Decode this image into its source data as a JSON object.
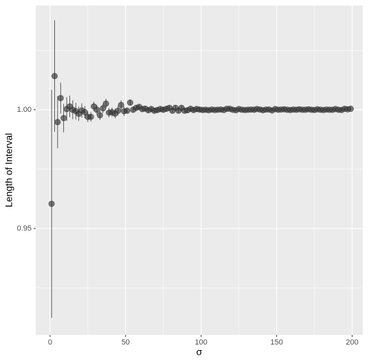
{
  "chart_data": {
    "type": "scatter",
    "xlabel": "σ",
    "ylabel": "Length of Interval",
    "x": [
      1,
      3,
      5,
      7,
      9,
      11,
      13,
      15,
      17,
      19,
      21,
      23,
      25,
      27,
      29,
      31,
      33,
      35,
      37,
      39,
      41,
      43,
      45,
      47,
      49,
      51,
      53,
      55,
      57,
      59,
      61,
      63,
      65,
      67,
      69,
      71,
      73,
      75,
      77,
      79,
      81,
      83,
      85,
      87,
      89,
      91,
      93,
      95,
      97,
      99,
      101,
      103,
      105,
      107,
      109,
      111,
      113,
      115,
      117,
      119,
      121,
      123,
      125,
      127,
      129,
      131,
      133,
      135,
      137,
      139,
      141,
      143,
      145,
      147,
      149,
      151,
      153,
      155,
      157,
      159,
      161,
      163,
      165,
      167,
      169,
      171,
      173,
      175,
      177,
      179,
      181,
      183,
      185,
      187,
      189,
      191,
      193,
      195,
      197,
      199
    ],
    "series": [
      {
        "color": "#333333",
        "values": [
          0.9604,
          1.0142,
          0.9948,
          1.0049,
          0.9965,
          1.0003,
          1.0014,
          1.0,
          0.9994,
          0.9983,
          0.9997,
          0.999,
          0.997,
          0.997,
          1.0014,
          1.0,
          0.9977,
          1.0006,
          1.0026,
          0.9988,
          0.999,
          0.9984,
          0.9996,
          1.002,
          0.9994,
          0.9996,
          1.003,
          1.0,
          1.0008,
          1.0012,
          1.0003,
          1.0005,
          0.9998,
          1.0003,
          0.9996,
          0.9999,
          1.0003,
          1.0,
          1.0004,
          1.0008,
          0.9996,
          1.0008,
          0.9996,
          1.0008,
          0.9996,
          0.9998,
          1.0004,
          0.9999,
          1.0003,
          1.0001,
          0.9999,
          1.0,
          0.9998,
          1.0001,
          0.9999,
          1.0,
          1.0001,
          0.9999,
          1.0004,
          1.0004,
          1.0,
          0.9998,
          1.0003,
          1.0,
          0.9999,
          1.0,
          1.0001,
          1.0,
          1.0003,
          1.0001,
          0.9998,
          1.0001,
          1.0001,
          0.9997,
          1.0003,
          1.0,
          1.0001,
          1.0002,
          1.0,
          0.9999,
          1.0001,
          1.0,
          1.0002,
          1.0,
          1.0,
          1.0002,
          1.0,
          0.9999,
          1.0002,
          1.0,
          0.9999,
          1.0001,
          1.0,
          1.0,
          1.0003,
          1.0,
          0.9999,
          1.0004,
          1.0002,
          1.0004
        ],
        "errors": [
          0.048,
          0.0235,
          0.011,
          0.0065,
          0.006,
          0.005,
          0.0045,
          0.004,
          0.0035,
          0.003,
          0.003,
          0.0025,
          0.0022,
          0.002,
          0.002,
          0.002,
          0.002,
          0.002,
          0.002,
          0.002,
          0.002,
          0.002,
          0.002,
          0.002,
          0.002,
          0.001,
          0.001,
          0.001,
          0.001,
          0.001,
          0.001,
          0.001,
          0.001,
          0.001,
          0.001,
          0.001,
          0.001,
          0.001,
          0.001,
          0.001,
          0.001,
          0.001,
          0.001,
          0.001,
          0.001,
          0.001,
          0.001,
          0.001,
          0.001,
          0.001,
          0.0007,
          0.0007,
          0.0007,
          0.0007,
          0.0007,
          0.0007,
          0.0007,
          0.0007,
          0.0007,
          0.0007,
          0.0007,
          0.0007,
          0.0007,
          0.0007,
          0.0007,
          0.0007,
          0.0007,
          0.0007,
          0.0007,
          0.0007,
          0.0007,
          0.0007,
          0.0007,
          0.0007,
          0.0007,
          0.0007,
          0.0007,
          0.0007,
          0.0007,
          0.0007,
          0.0007,
          0.0007,
          0.0007,
          0.0007,
          0.0007,
          0.0007,
          0.0007,
          0.0007,
          0.0007,
          0.0007,
          0.0007,
          0.0007,
          0.0007,
          0.0007,
          0.0007,
          0.0007,
          0.0007,
          0.0007,
          0.0007,
          0.0007
        ]
      }
    ],
    "xlim": [
      -9.5,
      207
    ],
    "xticks": [
      0,
      50,
      100,
      150,
      200
    ],
    "ylim": [
      0.9052,
      1.0439
    ],
    "yticks": [
      {
        "value": 0.95,
        "label": "0.95"
      },
      {
        "value": 1.0,
        "label": "1.00"
      }
    ],
    "grid": true
  }
}
